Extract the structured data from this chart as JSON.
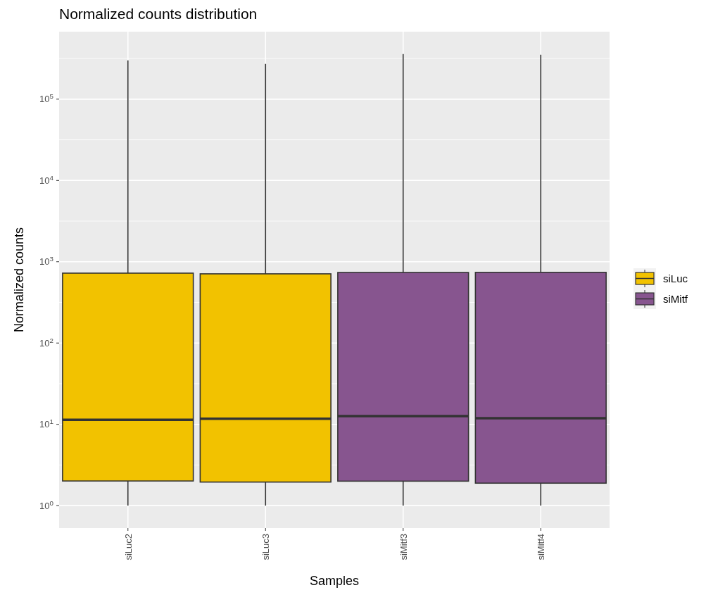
{
  "chart_data": {
    "type": "box",
    "title": "Normalized counts distribution",
    "xlabel": "Samples",
    "ylabel": "Normalized counts",
    "categories": [
      "siLuc2",
      "siLuc3",
      "siMitf3",
      "siMitf4"
    ],
    "series": [
      {
        "name": "siLuc",
        "color": "#f2c200",
        "boxes": [
          {
            "low": 1,
            "q1": 2.01,
            "median": 11.4,
            "q3": 724,
            "high": 300000
          },
          {
            "low": 1,
            "q1": 1.95,
            "median": 11.7,
            "q3": 710,
            "high": 271000
          },
          null,
          null
        ]
      },
      {
        "name": "siMitf",
        "color": "#87558f",
        "boxes": [
          null,
          null,
          {
            "low": 1,
            "q1": 2.0,
            "median": 12.6,
            "q3": 738,
            "high": 359000
          },
          {
            "low": 1,
            "q1": 1.89,
            "median": 11.9,
            "q3": 740,
            "high": 352000
          }
        ]
      }
    ],
    "log": true,
    "ylim": [
      0.53,
      676000
    ],
    "yticks": [
      {
        "value": 1,
        "label": "10$^{0}$"
      },
      {
        "value": 10,
        "label": "10$^{1}$"
      },
      {
        "value": 100,
        "label": "10$^{2}$"
      },
      {
        "value": 1000,
        "label": "10$^{3}$"
      },
      {
        "value": 10000,
        "label": "10$^{4}$"
      },
      {
        "value": 100000,
        "label": "10$^{5}$"
      }
    ],
    "grid": true,
    "legend": "right"
  }
}
